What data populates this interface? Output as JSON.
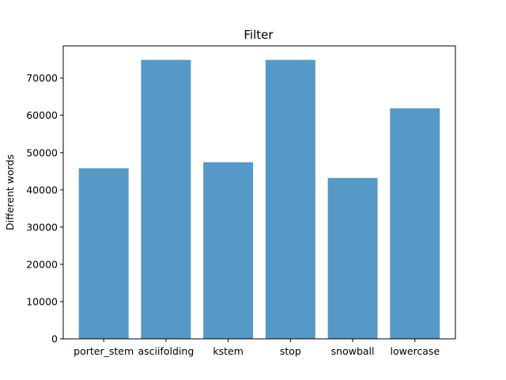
{
  "chart_data": {
    "type": "bar",
    "title": "Filter",
    "xlabel": "",
    "ylabel": "Different words",
    "categories": [
      "porter_stem",
      "asciifolding",
      "kstem",
      "stop",
      "snowball",
      "lowercase"
    ],
    "values": [
      45800,
      74900,
      47400,
      74900,
      43200,
      61900
    ],
    "ylim": [
      0,
      78645
    ],
    "yticks": [
      0,
      10000,
      20000,
      30000,
      40000,
      50000,
      60000,
      70000
    ],
    "bar_color": "#5599c7",
    "grid": false,
    "legend": "none"
  }
}
